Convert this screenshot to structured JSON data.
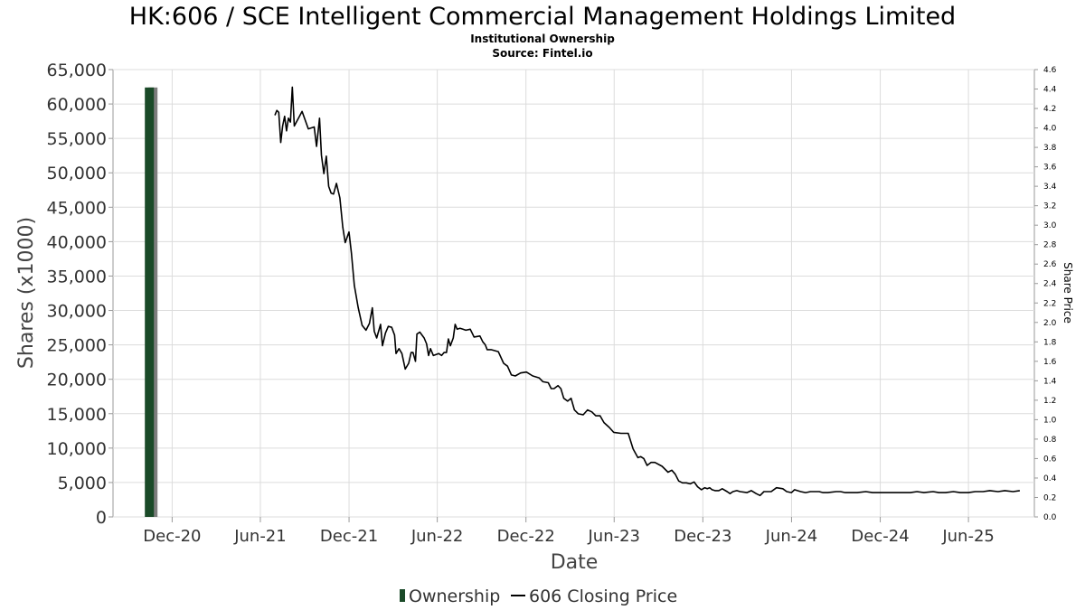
{
  "chart_data": {
    "type": "bar+line",
    "title": "HK:606 / SCE Intelligent Commercial Management Holdings Limited",
    "subtitle": "Institutional Ownership",
    "source": "Source: Fintel.io",
    "xlabel": "Date",
    "ylabel": "Shares (x1000)",
    "y2label": "Share Price",
    "ylim": [
      0,
      65000
    ],
    "y2lim": [
      0.0,
      4.6
    ],
    "yticks": [
      "0",
      "5,000",
      "10,000",
      "15,000",
      "20,000",
      "25,000",
      "30,000",
      "35,000",
      "40,000",
      "45,000",
      "50,000",
      "55,000",
      "60,000",
      "65,000"
    ],
    "y2ticks": [
      "0.0",
      "0.2",
      "0.4",
      "0.6",
      "0.8",
      "1.0",
      "1.2",
      "1.4",
      "1.6",
      "1.8",
      "2.0",
      "2.2",
      "2.4",
      "2.6",
      "2.8",
      "3.0",
      "3.2",
      "3.4",
      "3.6",
      "3.8",
      "4.0",
      "4.2",
      "4.4",
      "4.6"
    ],
    "xticks": [
      {
        "label": "Dec-20",
        "date": "2020-12-01"
      },
      {
        "label": "Jun-21",
        "date": "2021-06-01"
      },
      {
        "label": "Dec-21",
        "date": "2021-12-01"
      },
      {
        "label": "Jun-22",
        "date": "2022-06-01"
      },
      {
        "label": "Dec-22",
        "date": "2022-12-01"
      },
      {
        "label": "Jun-23",
        "date": "2023-06-01"
      },
      {
        "label": "Dec-23",
        "date": "2023-12-01"
      },
      {
        "label": "Jun-24",
        "date": "2024-06-01"
      },
      {
        "label": "Dec-24",
        "date": "2024-12-01"
      },
      {
        "label": "Jun-25",
        "date": "2025-06-01"
      }
    ],
    "xlim": [
      "2020-08-01",
      "2025-10-15"
    ],
    "grid": true,
    "legend_position": "bottom-center",
    "series": [
      {
        "name": "Ownership",
        "type": "bar",
        "axis": "left",
        "color": "#1a4a28",
        "points": [
          {
            "x": "2020-10-15",
            "y": 62400
          }
        ]
      },
      {
        "name": "606 Closing Price",
        "type": "line",
        "axis": "right",
        "color": "#000000",
        "points": [
          {
            "x": "2021-07-01",
            "y": 4.13
          },
          {
            "x": "2021-07-05",
            "y": 4.18
          },
          {
            "x": "2021-07-09",
            "y": 4.16
          },
          {
            "x": "2021-07-13",
            "y": 3.85
          },
          {
            "x": "2021-07-17",
            "y": 4.02
          },
          {
            "x": "2021-07-21",
            "y": 4.12
          },
          {
            "x": "2021-07-25",
            "y": 3.97
          },
          {
            "x": "2021-07-29",
            "y": 4.1
          },
          {
            "x": "2021-08-02",
            "y": 4.06
          },
          {
            "x": "2021-08-06",
            "y": 4.42
          },
          {
            "x": "2021-08-10",
            "y": 4.02
          },
          {
            "x": "2021-08-26",
            "y": 4.17
          },
          {
            "x": "2021-09-08",
            "y": 3.99
          },
          {
            "x": "2021-09-20",
            "y": 4.01
          },
          {
            "x": "2021-09-25",
            "y": 3.81
          },
          {
            "x": "2021-10-01",
            "y": 4.1
          },
          {
            "x": "2021-10-05",
            "y": 3.72
          },
          {
            "x": "2021-10-10",
            "y": 3.53
          },
          {
            "x": "2021-10-15",
            "y": 3.71
          },
          {
            "x": "2021-10-20",
            "y": 3.4
          },
          {
            "x": "2021-10-25",
            "y": 3.33
          },
          {
            "x": "2021-10-30",
            "y": 3.32
          },
          {
            "x": "2021-11-05",
            "y": 3.43
          },
          {
            "x": "2021-11-12",
            "y": 3.28
          },
          {
            "x": "2021-11-18",
            "y": 2.98
          },
          {
            "x": "2021-11-23",
            "y": 2.82
          },
          {
            "x": "2021-12-01",
            "y": 2.93
          },
          {
            "x": "2021-12-06",
            "y": 2.71
          },
          {
            "x": "2021-12-12",
            "y": 2.38
          },
          {
            "x": "2021-12-20",
            "y": 2.15
          },
          {
            "x": "2021-12-28",
            "y": 1.97
          },
          {
            "x": "2022-01-05",
            "y": 1.92
          },
          {
            "x": "2022-01-12",
            "y": 1.99
          },
          {
            "x": "2022-01-18",
            "y": 2.15
          },
          {
            "x": "2022-01-22",
            "y": 1.91
          },
          {
            "x": "2022-01-27",
            "y": 1.84
          },
          {
            "x": "2022-02-04",
            "y": 1.98
          },
          {
            "x": "2022-02-08",
            "y": 1.76
          },
          {
            "x": "2022-02-14",
            "y": 1.89
          },
          {
            "x": "2022-02-20",
            "y": 1.96
          },
          {
            "x": "2022-02-27",
            "y": 1.95
          },
          {
            "x": "2022-03-05",
            "y": 1.87
          },
          {
            "x": "2022-03-08",
            "y": 1.68
          },
          {
            "x": "2022-03-14",
            "y": 1.73
          },
          {
            "x": "2022-03-20",
            "y": 1.68
          },
          {
            "x": "2022-03-27",
            "y": 1.52
          },
          {
            "x": "2022-04-03",
            "y": 1.58
          },
          {
            "x": "2022-04-08",
            "y": 1.69
          },
          {
            "x": "2022-04-12",
            "y": 1.69
          },
          {
            "x": "2022-04-17",
            "y": 1.6
          },
          {
            "x": "2022-04-20",
            "y": 1.88
          },
          {
            "x": "2022-04-26",
            "y": 1.9
          },
          {
            "x": "2022-05-05",
            "y": 1.84
          },
          {
            "x": "2022-05-10",
            "y": 1.78
          },
          {
            "x": "2022-05-14",
            "y": 1.66
          },
          {
            "x": "2022-05-18",
            "y": 1.73
          },
          {
            "x": "2022-05-24",
            "y": 1.66
          },
          {
            "x": "2022-06-04",
            "y": 1.68
          },
          {
            "x": "2022-06-10",
            "y": 1.66
          },
          {
            "x": "2022-06-15",
            "y": 1.69
          },
          {
            "x": "2022-06-20",
            "y": 1.69
          },
          {
            "x": "2022-06-24",
            "y": 1.83
          },
          {
            "x": "2022-06-28",
            "y": 1.76
          },
          {
            "x": "2022-07-04",
            "y": 1.84
          },
          {
            "x": "2022-07-08",
            "y": 1.98
          },
          {
            "x": "2022-07-12",
            "y": 1.93
          },
          {
            "x": "2022-07-18",
            "y": 1.94
          },
          {
            "x": "2022-07-24",
            "y": 1.93
          },
          {
            "x": "2022-07-30",
            "y": 1.92
          },
          {
            "x": "2022-08-08",
            "y": 1.93
          },
          {
            "x": "2022-08-16",
            "y": 1.85
          },
          {
            "x": "2022-08-28",
            "y": 1.86
          },
          {
            "x": "2022-09-03",
            "y": 1.8
          },
          {
            "x": "2022-09-08",
            "y": 1.77
          },
          {
            "x": "2022-09-12",
            "y": 1.72
          },
          {
            "x": "2022-09-20",
            "y": 1.72
          },
          {
            "x": "2022-10-05",
            "y": 1.7
          },
          {
            "x": "2022-10-16",
            "y": 1.58
          },
          {
            "x": "2022-10-24",
            "y": 1.55
          },
          {
            "x": "2022-11-01",
            "y": 1.46
          },
          {
            "x": "2022-11-09",
            "y": 1.45
          },
          {
            "x": "2022-11-20",
            "y": 1.48
          },
          {
            "x": "2022-12-02",
            "y": 1.49
          },
          {
            "x": "2022-12-15",
            "y": 1.45
          },
          {
            "x": "2022-12-28",
            "y": 1.43
          },
          {
            "x": "2023-01-05",
            "y": 1.39
          },
          {
            "x": "2023-01-16",
            "y": 1.38
          },
          {
            "x": "2023-01-22",
            "y": 1.32
          },
          {
            "x": "2023-01-28",
            "y": 1.32
          },
          {
            "x": "2023-02-05",
            "y": 1.35
          },
          {
            "x": "2023-02-11",
            "y": 1.32
          },
          {
            "x": "2023-02-17",
            "y": 1.22
          },
          {
            "x": "2023-02-25",
            "y": 1.19
          },
          {
            "x": "2023-03-04",
            "y": 1.22
          },
          {
            "x": "2023-03-11",
            "y": 1.1
          },
          {
            "x": "2023-03-19",
            "y": 1.06
          },
          {
            "x": "2023-03-29",
            "y": 1.05
          },
          {
            "x": "2023-04-07",
            "y": 1.1
          },
          {
            "x": "2023-04-16",
            "y": 1.08
          },
          {
            "x": "2023-04-24",
            "y": 1.04
          },
          {
            "x": "2023-05-03",
            "y": 1.04
          },
          {
            "x": "2023-05-11",
            "y": 0.97
          },
          {
            "x": "2023-05-22",
            "y": 0.92
          },
          {
            "x": "2023-05-31",
            "y": 0.87
          },
          {
            "x": "2023-06-15",
            "y": 0.86
          },
          {
            "x": "2023-06-30",
            "y": 0.86
          },
          {
            "x": "2023-07-10",
            "y": 0.7
          },
          {
            "x": "2023-07-20",
            "y": 0.61
          },
          {
            "x": "2023-07-26",
            "y": 0.62
          },
          {
            "x": "2023-08-01",
            "y": 0.6
          },
          {
            "x": "2023-08-08",
            "y": 0.53
          },
          {
            "x": "2023-08-16",
            "y": 0.56
          },
          {
            "x": "2023-08-24",
            "y": 0.56
          },
          {
            "x": "2023-09-08",
            "y": 0.52
          },
          {
            "x": "2023-09-20",
            "y": 0.46
          },
          {
            "x": "2023-09-28",
            "y": 0.48
          },
          {
            "x": "2023-10-05",
            "y": 0.44
          },
          {
            "x": "2023-10-12",
            "y": 0.37
          },
          {
            "x": "2023-10-20",
            "y": 0.35
          },
          {
            "x": "2023-10-28",
            "y": 0.35
          },
          {
            "x": "2023-11-05",
            "y": 0.34
          },
          {
            "x": "2023-11-13",
            "y": 0.36
          },
          {
            "x": "2023-11-20",
            "y": 0.31
          },
          {
            "x": "2023-11-28",
            "y": 0.28
          },
          {
            "x": "2023-12-05",
            "y": 0.3
          },
          {
            "x": "2023-12-10",
            "y": 0.29
          },
          {
            "x": "2023-12-15",
            "y": 0.3
          },
          {
            "x": "2023-12-20",
            "y": 0.28
          },
          {
            "x": "2023-12-26",
            "y": 0.27
          },
          {
            "x": "2024-01-03",
            "y": 0.27
          },
          {
            "x": "2024-01-10",
            "y": 0.29
          },
          {
            "x": "2024-01-20",
            "y": 0.26
          },
          {
            "x": "2024-01-26",
            "y": 0.24
          },
          {
            "x": "2024-02-01",
            "y": 0.26
          },
          {
            "x": "2024-02-09",
            "y": 0.27
          },
          {
            "x": "2024-02-16",
            "y": 0.26
          },
          {
            "x": "2024-03-01",
            "y": 0.25
          },
          {
            "x": "2024-03-10",
            "y": 0.27
          },
          {
            "x": "2024-03-20",
            "y": 0.24
          },
          {
            "x": "2024-03-28",
            "y": 0.22
          },
          {
            "x": "2024-04-05",
            "y": 0.26
          },
          {
            "x": "2024-04-20",
            "y": 0.26
          },
          {
            "x": "2024-05-01",
            "y": 0.3
          },
          {
            "x": "2024-05-14",
            "y": 0.29
          },
          {
            "x": "2024-05-22",
            "y": 0.26
          },
          {
            "x": "2024-06-01",
            "y": 0.25
          },
          {
            "x": "2024-06-07",
            "y": 0.28
          },
          {
            "x": "2024-06-20",
            "y": 0.26
          },
          {
            "x": "2024-06-30",
            "y": 0.25
          },
          {
            "x": "2024-07-10",
            "y": 0.26
          },
          {
            "x": "2024-07-20",
            "y": 0.26
          },
          {
            "x": "2024-07-28",
            "y": 0.26
          },
          {
            "x": "2024-08-05",
            "y": 0.25
          },
          {
            "x": "2024-08-15",
            "y": 0.25
          },
          {
            "x": "2024-09-01",
            "y": 0.26
          },
          {
            "x": "2024-09-10",
            "y": 0.26
          },
          {
            "x": "2024-09-20",
            "y": 0.25
          },
          {
            "x": "2024-10-01",
            "y": 0.25
          },
          {
            "x": "2024-10-15",
            "y": 0.25
          },
          {
            "x": "2024-11-01",
            "y": 0.26
          },
          {
            "x": "2024-11-15",
            "y": 0.25
          },
          {
            "x": "2024-12-01",
            "y": 0.25
          },
          {
            "x": "2024-12-15",
            "y": 0.25
          },
          {
            "x": "2025-01-01",
            "y": 0.25
          },
          {
            "x": "2025-01-15",
            "y": 0.25
          },
          {
            "x": "2025-02-01",
            "y": 0.25
          },
          {
            "x": "2025-02-15",
            "y": 0.26
          },
          {
            "x": "2025-03-01",
            "y": 0.25
          },
          {
            "x": "2025-03-20",
            "y": 0.26
          },
          {
            "x": "2025-04-01",
            "y": 0.25
          },
          {
            "x": "2025-04-15",
            "y": 0.25
          },
          {
            "x": "2025-05-01",
            "y": 0.26
          },
          {
            "x": "2025-05-15",
            "y": 0.25
          },
          {
            "x": "2025-06-01",
            "y": 0.25
          },
          {
            "x": "2025-06-15",
            "y": 0.26
          },
          {
            "x": "2025-07-01",
            "y": 0.26
          },
          {
            "x": "2025-07-15",
            "y": 0.27
          },
          {
            "x": "2025-08-01",
            "y": 0.26
          },
          {
            "x": "2025-08-15",
            "y": 0.27
          },
          {
            "x": "2025-09-01",
            "y": 0.26
          },
          {
            "x": "2025-09-15",
            "y": 0.27
          }
        ]
      }
    ]
  },
  "legend": {
    "items": [
      {
        "label": "Ownership",
        "swatch": "bar",
        "color": "#1a4a28"
      },
      {
        "label": "606 Closing Price",
        "swatch": "line",
        "color": "#000000"
      }
    ]
  }
}
